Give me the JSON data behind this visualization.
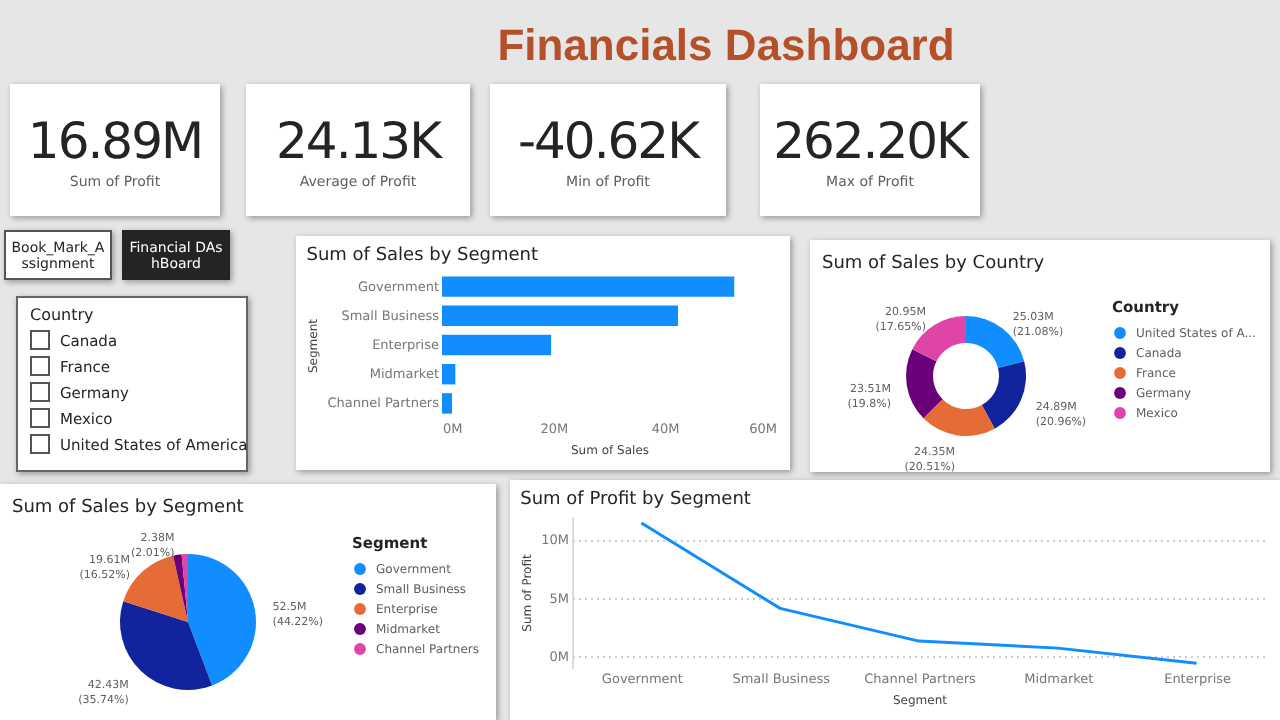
{
  "chart_data": [
    {
      "type": "other",
      "title": "Financials Dashboard",
      "annotations": [
        "16.89M",
        "Sum of Profit",
        "24.13K",
        "Average of Profit",
        "-40.62K",
        "Min of Profit",
        "262.20K",
        "Max of Profit"
      ]
    },
    {
      "type": "other",
      "annotations": [
        "Book_Mark_Assignment",
        "Financial DAshBoard"
      ]
    },
    {
      "type": "other",
      "title": "Country",
      "annotations": [
        "Canada",
        "France",
        "Germany",
        "Mexico",
        "United States of America"
      ]
    },
    {
      "type": "bar",
      "title": "Sum of Sales by Segment",
      "orientation": "horizontal",
      "categories": [
        "Government",
        "Small Business",
        "Enterprise",
        "Midmarket",
        "Channel Partners"
      ],
      "values": [
        52.5,
        42.4,
        19.6,
        2.4,
        1.8
      ],
      "color": "#118dff",
      "xlim": [
        0,
        60
      ],
      "xticks": [
        {
          "value": 0,
          "label": "0M"
        },
        {
          "value": 20,
          "label": "20M"
        },
        {
          "value": 40,
          "label": "40M"
        },
        {
          "value": 60,
          "label": "60M"
        }
      ],
      "xlabel": "Sum of Sales",
      "ylabel": "Segment",
      "grid": false
    },
    {
      "type": "donut",
      "title": "Sum of Sales by Country",
      "categories": [
        "United States of A...",
        "Canada",
        "France",
        "Germany",
        "Mexico"
      ],
      "values": [
        21.08,
        20.96,
        20.51,
        19.8,
        17.65
      ],
      "colors": [
        "#118dff",
        "#12239e",
        "#e66c37",
        "#6b007b",
        "#e044a7"
      ],
      "value_labels": [
        "25.03M (21.08%)",
        "24.89M (20.96%)",
        "24.35M (20.51%)",
        "23.51M (19.8%)",
        "20.95M (17.65%)"
      ],
      "legend_title": "Country",
      "legend": "right"
    },
    {
      "type": "pie",
      "title": "Sum of Sales by Segment",
      "categories": [
        "Government",
        "Small Business",
        "Enterprise",
        "Midmarket",
        "Channel Partners"
      ],
      "values": [
        44.22,
        35.74,
        16.52,
        2.01,
        1.51
      ],
      "colors": [
        "#118dff",
        "#12239e",
        "#e66c37",
        "#6b007b",
        "#e044a7"
      ],
      "value_labels": [
        "52.5M (44.22%)",
        "42.43M (35.74%)",
        "19.61M (16.52%)",
        "2.38M (2.01%)",
        null
      ],
      "legend_title": "Segment",
      "legend": "right"
    },
    {
      "type": "line",
      "title": "Sum of Profit by Segment",
      "categories": [
        "Government",
        "Small Business",
        "Channel Partners",
        "Midmarket",
        "Enterprise"
      ],
      "values": [
        11.4,
        4.1,
        1.3,
        0.7,
        -0.6
      ],
      "color": "#118dff",
      "ylim": [
        -1,
        12
      ],
      "yticks": [
        {
          "value": 0,
          "label": "0M"
        },
        {
          "value": 5,
          "label": "5M"
        },
        {
          "value": 10,
          "label": "10M"
        }
      ],
      "xlabel": "Segment",
      "ylabel": "Sum of Profit",
      "grid": "y",
      "marker": "none",
      "line_style": "solid"
    }
  ]
}
